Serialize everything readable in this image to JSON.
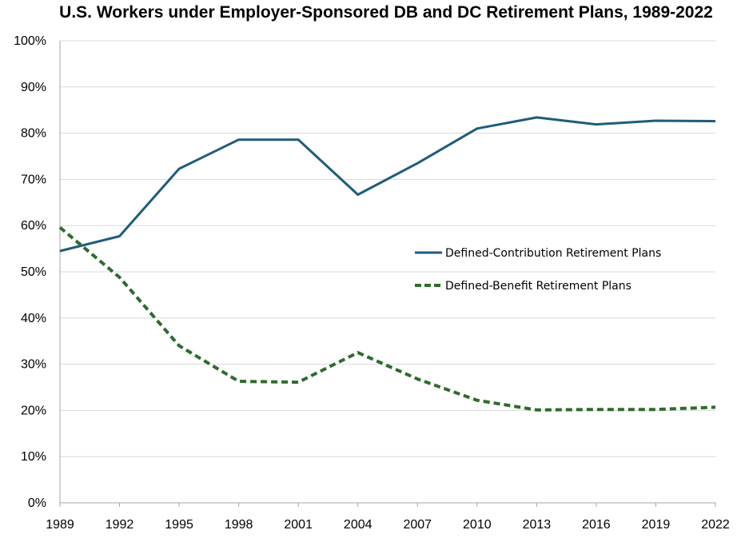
{
  "chart_data": {
    "type": "line",
    "title": "U.S. Workers under Employer-Sponsored DB and DC Retirement Plans, 1989-2022",
    "xlabel": "",
    "ylabel": "",
    "categories": [
      "1989",
      "1992",
      "1995",
      "1998",
      "2001",
      "2004",
      "2007",
      "2010",
      "2013",
      "2016",
      "2019",
      "2022"
    ],
    "y_ticks": [
      "0%",
      "10%",
      "20%",
      "30%",
      "40%",
      "50%",
      "60%",
      "70%",
      "80%",
      "90%",
      "100%"
    ],
    "ylim": [
      0,
      100
    ],
    "grid": true,
    "legend_position": "center-right",
    "series": [
      {
        "name": "Defined-Contribution Retirement Plans",
        "color": "#1f5c7a",
        "style": "solid",
        "values": [
          54.5,
          57.7,
          72.3,
          78.6,
          78.6,
          66.7,
          73.5,
          81.0,
          83.4,
          81.9,
          82.7,
          82.6
        ]
      },
      {
        "name": "Defined-Benefit Retirement Plans",
        "color": "#2e6b2e",
        "style": "dashed",
        "values": [
          59.6,
          48.8,
          34.0,
          26.3,
          26.1,
          32.5,
          26.8,
          22.2,
          20.1,
          20.2,
          20.2,
          20.7
        ]
      }
    ]
  },
  "colors": {
    "gridline": "#d9d9d9",
    "axis": "#a6a6a6"
  }
}
